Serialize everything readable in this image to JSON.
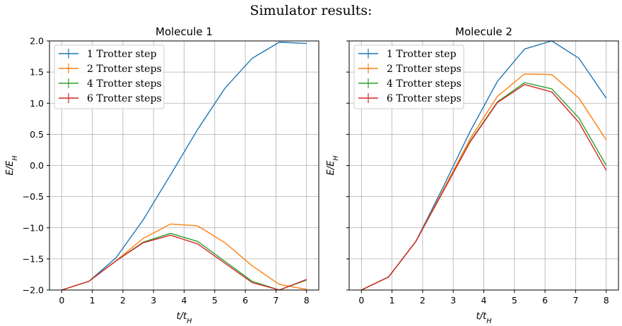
{
  "figure": {
    "suptitle": "Simulator results:",
    "colors": [
      "#1f77b4",
      "#ff7f0e",
      "#2ca02c",
      "#d62728"
    ]
  },
  "chart_data": [
    {
      "type": "line",
      "title": "Molecule 1",
      "xlabel": "t/t_H",
      "ylabel": "E/E_H",
      "xlim": [
        -0.4,
        8.4
      ],
      "ylim": [
        -2.0,
        2.0
      ],
      "xticks": [
        "0",
        "1",
        "2",
        "3",
        "4",
        "5",
        "6",
        "7",
        "8"
      ],
      "yticks": [
        "2.0",
        "1.5",
        "1.0",
        "0.5",
        "0.0",
        "−0.5",
        "−1.0",
        "−1.5",
        "−2.0"
      ],
      "grid": true,
      "legend_position": "upper-left",
      "x": [
        0,
        0.889,
        1.778,
        2.667,
        3.556,
        4.444,
        5.333,
        6.222,
        7.111,
        8.0
      ],
      "series": [
        {
          "name": "1 Trotter step",
          "values": [
            -2.0,
            -1.86,
            -1.48,
            -0.87,
            -0.15,
            0.58,
            1.24,
            1.72,
            1.98,
            1.96
          ]
        },
        {
          "name": "2 Trotter steps",
          "values": [
            -2.0,
            -1.86,
            -1.53,
            -1.17,
            -0.94,
            -0.97,
            -1.24,
            -1.61,
            -1.91,
            -1.99
          ]
        },
        {
          "name": "4 Trotter steps",
          "values": [
            -2.0,
            -1.86,
            -1.53,
            -1.23,
            -1.09,
            -1.22,
            -1.54,
            -1.86,
            -2.0,
            -1.84
          ]
        },
        {
          "name": "6 Trotter steps",
          "values": [
            -2.0,
            -1.86,
            -1.53,
            -1.24,
            -1.12,
            -1.26,
            -1.57,
            -1.88,
            -2.0,
            -1.83
          ]
        }
      ]
    },
    {
      "type": "line",
      "title": "Molecule 2",
      "xlabel": "t/t_H",
      "ylabel": "E/E_H",
      "xlim": [
        -0.4,
        8.4
      ],
      "ylim": [
        -2.0,
        2.0
      ],
      "xticks": [
        "0",
        "1",
        "2",
        "3",
        "4",
        "5",
        "6",
        "7",
        "8"
      ],
      "yticks": [],
      "grid": true,
      "legend_position": "upper-left",
      "x": [
        0,
        0.889,
        1.778,
        2.667,
        3.556,
        4.444,
        5.333,
        6.222,
        7.111,
        8.0
      ],
      "series": [
        {
          "name": "1 Trotter step",
          "values": [
            -2.0,
            -1.79,
            -1.22,
            -0.35,
            0.55,
            1.35,
            1.87,
            2.0,
            1.72,
            1.08
          ]
        },
        {
          "name": "2 Trotter steps",
          "values": [
            -2.0,
            -1.79,
            -1.22,
            -0.4,
            0.43,
            1.11,
            1.47,
            1.46,
            1.08,
            0.41
          ]
        },
        {
          "name": "4 Trotter steps",
          "values": [
            -2.0,
            -1.79,
            -1.22,
            -0.42,
            0.39,
            1.02,
            1.33,
            1.23,
            0.76,
            0.0
          ]
        },
        {
          "name": "6 Trotter steps",
          "values": [
            -2.0,
            -1.79,
            -1.22,
            -0.42,
            0.38,
            1.01,
            1.3,
            1.18,
            0.69,
            -0.08
          ]
        }
      ]
    }
  ]
}
